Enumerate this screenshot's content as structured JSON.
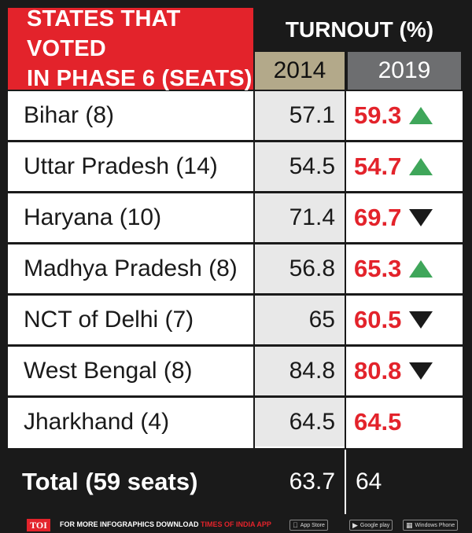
{
  "header": {
    "title_line1": "STATES THAT VOTED",
    "title_line2": "IN PHASE 6 (SEATS)",
    "turnout_label": "TURNOUT (%)",
    "year_2014": "2014",
    "year_2019": "2019"
  },
  "rows": [
    {
      "state": "Bihar (8)",
      "v2014": "57.1",
      "v2019": "59.3",
      "trend": "up"
    },
    {
      "state": "Uttar Pradesh (14)",
      "v2014": "54.5",
      "v2019": "54.7",
      "trend": "up"
    },
    {
      "state": "Haryana (10)",
      "v2014": "71.4",
      "v2019": "69.7",
      "trend": "down"
    },
    {
      "state": "Madhya Pradesh (8)",
      "v2014": "56.8",
      "v2019": "65.3",
      "trend": "up"
    },
    {
      "state": "NCT of Delhi (7)",
      "v2014": "65",
      "v2019": "60.5",
      "trend": "down"
    },
    {
      "state": "West Bengal (8)",
      "v2014": "84.8",
      "v2019": "80.8",
      "trend": "down"
    },
    {
      "state": "Jharkhand (4)",
      "v2014": "64.5",
      "v2019": "64.5",
      "trend": "none"
    }
  ],
  "total": {
    "label": "Total (59 seats)",
    "v2014": "63.7",
    "v2019": "64"
  },
  "footer": {
    "logo": "TOI",
    "message": "FOR MORE INFOGRAPHICS DOWNLOAD",
    "app_name": "TIMES OF INDIA APP",
    "badges": [
      "App Store",
      "Google play",
      "Windows Phone"
    ]
  },
  "colors": {
    "accent_red": "#e3232b",
    "up_green": "#3fa65a",
    "col2014": "#b3a98a",
    "col2019": "#6d6e70"
  },
  "chart_data": {
    "type": "table",
    "title": "STATES THAT VOTED IN PHASE 6 (SEATS)",
    "column_group": "TURNOUT (%)",
    "columns": [
      "2014",
      "2019"
    ],
    "categories": [
      "Bihar (8)",
      "Uttar Pradesh (14)",
      "Haryana (10)",
      "Madhya Pradesh (8)",
      "NCT of Delhi (7)",
      "West Bengal (8)",
      "Jharkhand (4)"
    ],
    "series": [
      {
        "name": "2014",
        "values": [
          57.1,
          54.5,
          71.4,
          56.8,
          65,
          84.8,
          64.5
        ]
      },
      {
        "name": "2019",
        "values": [
          59.3,
          54.7,
          69.7,
          65.3,
          60.5,
          80.8,
          64.5
        ]
      }
    ],
    "total": {
      "label": "Total (59 seats)",
      "2014": 63.7,
      "2019": 64
    }
  }
}
